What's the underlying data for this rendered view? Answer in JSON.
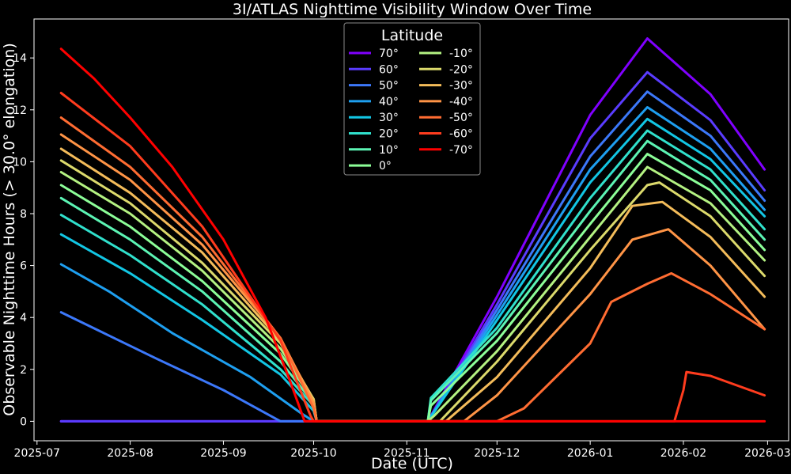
{
  "chart_data": {
    "type": "line",
    "title": "3I/ATLAS Nighttime Visibility Window Over Time",
    "xlabel": "Date (UTC)",
    "ylabel": "Observable Nighttime Hours (> 30.0° elongation)",
    "xlim": [
      "2025-06-30",
      "2026-03-08"
    ],
    "ylim": [
      -0.75,
      15.5
    ],
    "x_ticks": [
      "2025-07",
      "2025-08",
      "2025-09",
      "2025-10",
      "2025-11",
      "2025-12",
      "2026-01",
      "2026-02",
      "2026-03"
    ],
    "y_ticks": [
      0,
      2,
      4,
      6,
      8,
      10,
      12,
      14
    ],
    "grid": false,
    "legend": {
      "title": "Latitude",
      "placement": "top-center",
      "columns": 2
    },
    "series": [
      {
        "name": "70°",
        "color": "#8000ff",
        "points": [
          [
            "2025-07-09",
            0
          ],
          [
            "2025-10-02",
            0
          ],
          [
            "2025-11-08",
            0
          ],
          [
            "2025-12-01",
            4.8
          ],
          [
            "2026-01-01",
            11.8
          ],
          [
            "2026-01-20",
            14.75
          ],
          [
            "2026-02-10",
            12.6
          ],
          [
            "2026-02-28",
            9.7
          ]
        ]
      },
      {
        "name": "60°",
        "color": "#5a3cff",
        "points": [
          [
            "2025-07-09",
            0
          ],
          [
            "2025-10-02",
            0
          ],
          [
            "2025-11-08",
            0
          ],
          [
            "2025-12-01",
            4.5
          ],
          [
            "2026-01-01",
            10.9
          ],
          [
            "2026-01-20",
            13.45
          ],
          [
            "2026-02-10",
            11.6
          ],
          [
            "2026-02-28",
            8.9
          ]
        ]
      },
      {
        "name": "50°",
        "color": "#3c78fa",
        "points": [
          [
            "2025-07-09",
            4.2
          ],
          [
            "2025-07-25",
            3.3
          ],
          [
            "2025-08-10",
            2.4
          ],
          [
            "2025-09-01",
            1.2
          ],
          [
            "2025-09-20",
            0
          ],
          [
            "2025-10-02",
            0
          ],
          [
            "2025-11-08",
            0
          ],
          [
            "2025-12-01",
            4.3
          ],
          [
            "2026-01-01",
            10.2
          ],
          [
            "2026-01-20",
            12.7
          ],
          [
            "2026-02-10",
            11.0
          ],
          [
            "2026-02-28",
            8.5
          ]
        ]
      },
      {
        "name": "40°",
        "color": "#1e9ff0",
        "points": [
          [
            "2025-07-09",
            6.05
          ],
          [
            "2025-07-25",
            5.0
          ],
          [
            "2025-08-15",
            3.4
          ],
          [
            "2025-09-10",
            1.7
          ],
          [
            "2025-09-27",
            0.3
          ],
          [
            "2025-10-01",
            0
          ],
          [
            "2025-11-08",
            0
          ],
          [
            "2025-12-01",
            4.1
          ],
          [
            "2026-01-01",
            9.7
          ],
          [
            "2026-01-20",
            12.1
          ],
          [
            "2026-02-10",
            10.5
          ],
          [
            "2026-02-28",
            8.15
          ]
        ]
      },
      {
        "name": "30°",
        "color": "#12c6e4",
        "points": [
          [
            "2025-07-09",
            7.2
          ],
          [
            "2025-08-01",
            5.7
          ],
          [
            "2025-08-25",
            3.9
          ],
          [
            "2025-09-20",
            1.8
          ],
          [
            "2025-10-01",
            0.4
          ],
          [
            "2025-10-02",
            0
          ],
          [
            "2025-11-08",
            0
          ],
          [
            "2025-12-01",
            3.9
          ],
          [
            "2026-01-01",
            9.2
          ],
          [
            "2026-01-20",
            11.65
          ],
          [
            "2026-02-10",
            10.1
          ],
          [
            "2026-02-28",
            7.9
          ]
        ]
      },
      {
        "name": "20°",
        "color": "#30e0cc",
        "points": [
          [
            "2025-07-09",
            7.95
          ],
          [
            "2025-08-01",
            6.4
          ],
          [
            "2025-08-25",
            4.5
          ],
          [
            "2025-09-20",
            2.0
          ],
          [
            "2025-10-01",
            0.6
          ],
          [
            "2025-10-02",
            0
          ],
          [
            "2025-11-08",
            0
          ],
          [
            "2025-11-09",
            0.9
          ],
          [
            "2025-12-01",
            3.6
          ],
          [
            "2026-01-01",
            8.6
          ],
          [
            "2026-01-20",
            11.2
          ],
          [
            "2026-02-10",
            9.7
          ],
          [
            "2026-02-28",
            7.4
          ]
        ]
      },
      {
        "name": "10°",
        "color": "#5cf4b4",
        "points": [
          [
            "2025-07-09",
            8.6
          ],
          [
            "2025-08-01",
            7.0
          ],
          [
            "2025-08-25",
            5.0
          ],
          [
            "2025-09-20",
            2.3
          ],
          [
            "2025-10-01",
            0.7
          ],
          [
            "2025-10-02",
            0
          ],
          [
            "2025-11-08",
            0
          ],
          [
            "2025-11-09",
            0.8
          ],
          [
            "2025-12-01",
            3.4
          ],
          [
            "2026-01-01",
            8.1
          ],
          [
            "2026-01-20",
            10.8
          ],
          [
            "2026-02-10",
            9.3
          ],
          [
            "2026-02-28",
            7.0
          ]
        ]
      },
      {
        "name": "0°",
        "color": "#8cfe98",
        "points": [
          [
            "2025-07-09",
            9.1
          ],
          [
            "2025-08-01",
            7.5
          ],
          [
            "2025-08-25",
            5.4
          ],
          [
            "2025-09-20",
            2.6
          ],
          [
            "2025-10-01",
            0.8
          ],
          [
            "2025-10-02",
            0
          ],
          [
            "2025-11-08",
            0
          ],
          [
            "2025-11-09",
            0.6
          ],
          [
            "2025-12-01",
            3.1
          ],
          [
            "2026-01-01",
            7.6
          ],
          [
            "2026-01-20",
            10.3
          ],
          [
            "2026-02-10",
            8.9
          ],
          [
            "2026-02-28",
            6.6
          ]
        ]
      },
      {
        "name": "-10°",
        "color": "#b4f282",
        "points": [
          [
            "2025-07-09",
            9.6
          ],
          [
            "2025-08-01",
            8.0
          ],
          [
            "2025-08-25",
            5.8
          ],
          [
            "2025-09-20",
            2.8
          ],
          [
            "2025-10-01",
            0.85
          ],
          [
            "2025-10-02",
            0
          ],
          [
            "2025-11-08",
            0
          ],
          [
            "2025-11-10",
            0.2
          ],
          [
            "2025-12-01",
            2.7
          ],
          [
            "2026-01-01",
            7.1
          ],
          [
            "2026-01-20",
            9.8
          ],
          [
            "2026-02-10",
            8.4
          ],
          [
            "2026-02-28",
            6.2
          ]
        ]
      },
      {
        "name": "-20°",
        "color": "#dcda6c",
        "points": [
          [
            "2025-07-09",
            10.05
          ],
          [
            "2025-08-01",
            8.4
          ],
          [
            "2025-08-25",
            6.1
          ],
          [
            "2025-09-20",
            3.0
          ],
          [
            "2025-10-01",
            0.85
          ],
          [
            "2025-10-02",
            0
          ],
          [
            "2025-11-12",
            0
          ],
          [
            "2025-12-01",
            2.3
          ],
          [
            "2026-01-01",
            6.6
          ],
          [
            "2026-01-20",
            9.1
          ],
          [
            "2026-01-24",
            9.2
          ],
          [
            "2026-02-10",
            7.9
          ],
          [
            "2026-02-28",
            5.6
          ]
        ]
      },
      {
        "name": "-30°",
        "color": "#f4bc5a",
        "points": [
          [
            "2025-07-09",
            10.5
          ],
          [
            "2025-08-01",
            8.8
          ],
          [
            "2025-08-25",
            6.5
          ],
          [
            "2025-09-20",
            3.1
          ],
          [
            "2025-10-01",
            0.8
          ],
          [
            "2025-10-02",
            0
          ],
          [
            "2025-11-14",
            0
          ],
          [
            "2025-12-01",
            1.7
          ],
          [
            "2026-01-01",
            5.9
          ],
          [
            "2026-01-15",
            8.3
          ],
          [
            "2026-01-25",
            8.45
          ],
          [
            "2026-02-10",
            7.1
          ],
          [
            "2026-02-28",
            4.8
          ]
        ]
      },
      {
        "name": "-40°",
        "color": "#ff9446",
        "points": [
          [
            "2025-07-09",
            11.05
          ],
          [
            "2025-08-01",
            9.3
          ],
          [
            "2025-08-25",
            6.8
          ],
          [
            "2025-09-20",
            3.2
          ],
          [
            "2025-10-01",
            0.7
          ],
          [
            "2025-10-02",
            0
          ],
          [
            "2025-11-20",
            0
          ],
          [
            "2025-12-01",
            1.0
          ],
          [
            "2026-01-01",
            4.9
          ],
          [
            "2026-01-15",
            7.0
          ],
          [
            "2026-01-27",
            7.4
          ],
          [
            "2026-02-10",
            6.0
          ],
          [
            "2026-02-28",
            3.55
          ]
        ]
      },
      {
        "name": "-50°",
        "color": "#ff6c32",
        "points": [
          [
            "2025-07-09",
            11.7
          ],
          [
            "2025-08-01",
            9.8
          ],
          [
            "2025-08-25",
            7.1
          ],
          [
            "2025-09-20",
            3.2
          ],
          [
            "2025-10-01",
            0.5
          ],
          [
            "2025-10-02",
            0
          ],
          [
            "2025-12-01",
            0
          ],
          [
            "2025-12-10",
            0.5
          ],
          [
            "2026-01-01",
            3.0
          ],
          [
            "2026-01-08",
            4.6
          ],
          [
            "2026-01-20",
            5.3
          ],
          [
            "2026-01-28",
            5.7
          ],
          [
            "2026-02-10",
            4.9
          ],
          [
            "2026-02-28",
            3.55
          ]
        ]
      },
      {
        "name": "-60°",
        "color": "#ff3c1e",
        "points": [
          [
            "2025-07-09",
            12.65
          ],
          [
            "2025-08-01",
            10.6
          ],
          [
            "2025-08-25",
            7.5
          ],
          [
            "2025-09-20",
            3.1
          ],
          [
            "2025-09-30",
            0.2
          ],
          [
            "2025-10-01",
            0
          ],
          [
            "2026-01-29",
            0
          ],
          [
            "2026-02-01",
            1.2
          ],
          [
            "2026-02-02",
            1.9
          ],
          [
            "2026-02-10",
            1.75
          ],
          [
            "2026-02-28",
            1.0
          ]
        ]
      },
      {
        "name": "-70°",
        "color": "#ff0000",
        "points": [
          [
            "2025-07-09",
            14.35
          ],
          [
            "2025-07-20",
            13.2
          ],
          [
            "2025-08-01",
            11.7
          ],
          [
            "2025-08-15",
            9.8
          ],
          [
            "2025-09-01",
            7.0
          ],
          [
            "2025-09-15",
            4.0
          ],
          [
            "2025-09-23",
            1.6
          ],
          [
            "2025-09-28",
            0
          ],
          [
            "2026-02-28",
            0
          ]
        ]
      }
    ]
  }
}
